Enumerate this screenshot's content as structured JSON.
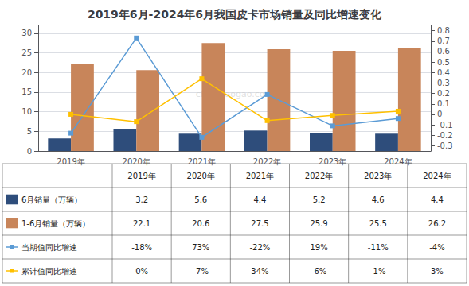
{
  "chart_data": {
    "type": "bar",
    "title": "2019年6月-2024年6月我国皮卡市场销量及同比增速变化",
    "categories": [
      "2019年",
      "2020年",
      "2021年",
      "2022年",
      "2023年",
      "2024年"
    ],
    "series": [
      {
        "name": "6月销量（万辆）",
        "type": "bar",
        "color": "#2e4d7b",
        "values": [
          3.2,
          5.6,
          4.4,
          5.2,
          4.6,
          4.4
        ]
      },
      {
        "name": "1-6月销量（万辆）",
        "type": "bar",
        "color": "#c8855a",
        "values": [
          22.1,
          20.6,
          27.5,
          25.9,
          25.5,
          26.2
        ]
      },
      {
        "name": "当期值同比增速",
        "type": "line",
        "axis": "y2",
        "marker": "square",
        "color": "#5b9bd5",
        "values": [
          -0.18,
          0.73,
          -0.22,
          0.19,
          -0.11,
          -0.04
        ],
        "value_labels": [
          "-18%",
          "73%",
          "-22%",
          "19%",
          "-11%",
          "-4%"
        ]
      },
      {
        "name": "累计值同比增速",
        "type": "line",
        "axis": "y2",
        "marker": "square",
        "color": "#ffc000",
        "values": [
          0.0,
          -0.07,
          0.34,
          -0.06,
          -0.01,
          0.03
        ],
        "value_labels": [
          "0%",
          "-7%",
          "34%",
          "-6%",
          "-1%",
          "3%"
        ]
      }
    ],
    "ylim": [
      0,
      32
    ],
    "yticks": [
      0,
      5,
      10,
      15,
      20,
      25,
      30
    ],
    "y2lim": [
      -0.35,
      0.85
    ],
    "y2ticks": [
      -0.3,
      -0.2,
      -0.1,
      0,
      0.1,
      0.2,
      0.3,
      0.4,
      0.5,
      0.6,
      0.7,
      0.8
    ],
    "grid": true,
    "annotations": [
      "chinabaogao.com"
    ]
  }
}
